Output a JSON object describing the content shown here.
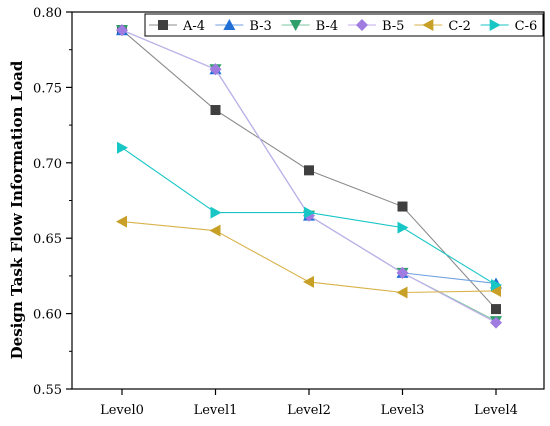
{
  "chart_data": {
    "type": "line",
    "title": "",
    "xlabel": "",
    "ylabel": "Design Task Flow Information Load",
    "categories": [
      "Level0",
      "Level1",
      "Level2",
      "Level3",
      "Level4"
    ],
    "ylim": [
      0.55,
      0.8
    ],
    "yticks": [
      "0.55",
      "0.60",
      "0.65",
      "0.70",
      "0.75",
      "0.80"
    ],
    "grid": false,
    "legend_position": "top-right",
    "series": [
      {
        "name": "A-4",
        "values": [
          0.788,
          0.735,
          0.695,
          0.671,
          0.603
        ],
        "color": "#3f3f3f",
        "line_color": "#8c8c8c",
        "marker": "square"
      },
      {
        "name": "B-3",
        "values": [
          0.788,
          0.762,
          0.665,
          0.627,
          0.62
        ],
        "color": "#1f6fd6",
        "line_color": "#6fa0e0",
        "marker": "triangle-up"
      },
      {
        "name": "B-4",
        "values": [
          0.788,
          0.762,
          0.665,
          0.627,
          0.595
        ],
        "color": "#2e9e6a",
        "line_color": "#7cc4a2",
        "marker": "triangle-down"
      },
      {
        "name": "B-5",
        "values": [
          0.788,
          0.762,
          0.665,
          0.627,
          0.594
        ],
        "color": "#a07be0",
        "line_color": "#c6aef0",
        "marker": "diamond"
      },
      {
        "name": "C-2",
        "values": [
          0.661,
          0.655,
          0.621,
          0.614,
          0.615
        ],
        "color": "#c8a028",
        "line_color": "#d8b24a",
        "marker": "triangle-left"
      },
      {
        "name": "C-6",
        "values": [
          0.71,
          0.667,
          0.667,
          0.657,
          0.619
        ],
        "color": "#19c6c6",
        "line_color": "#19c6c6",
        "marker": "triangle-right"
      }
    ]
  }
}
